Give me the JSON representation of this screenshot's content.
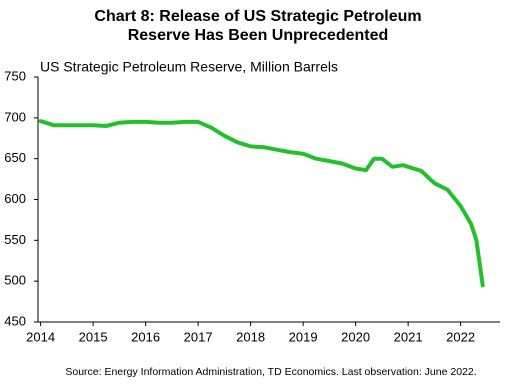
{
  "chart_data": {
    "type": "line",
    "title": [
      "Chart 8: Release of US Strategic Petroleum",
      "Reserve Has Been Unprecedented"
    ],
    "subtitle": "US Strategic Petroleum Reserve, Million Barrels",
    "source": "Source:  Energy  Information  Administration,  TD  Economics.  Last observation:  June 2022.",
    "color": "#22c12b",
    "x": [
      2014.0,
      2014.25,
      2014.5,
      2014.75,
      2015.0,
      2015.25,
      2015.5,
      2015.75,
      2016.0,
      2016.25,
      2016.5,
      2016.75,
      2017.0,
      2017.25,
      2017.5,
      2017.75,
      2018.0,
      2018.25,
      2018.5,
      2018.75,
      2019.0,
      2019.25,
      2019.5,
      2019.75,
      2020.0,
      2020.2,
      2020.35,
      2020.5,
      2020.7,
      2020.9,
      2021.0,
      2021.25,
      2021.5,
      2021.75,
      2021.9,
      2022.0,
      2022.2,
      2022.3,
      2022.42
    ],
    "values": [
      696,
      691,
      691,
      691,
      691,
      690,
      694,
      695,
      695,
      694,
      694,
      695,
      695,
      688,
      678,
      670,
      665,
      664,
      661,
      658,
      656,
      650,
      647,
      644,
      638,
      636,
      650,
      650,
      640,
      642,
      640,
      635,
      620,
      612,
      600,
      592,
      570,
      550,
      495
    ],
    "xlim": [
      2013.95,
      2022.75
    ],
    "xticks": [
      2014,
      2015,
      2016,
      2017,
      2018,
      2019,
      2020,
      2021,
      2022
    ],
    "ylim": [
      450,
      750
    ],
    "yticks": [
      450,
      500,
      550,
      600,
      650,
      700,
      750
    ]
  }
}
